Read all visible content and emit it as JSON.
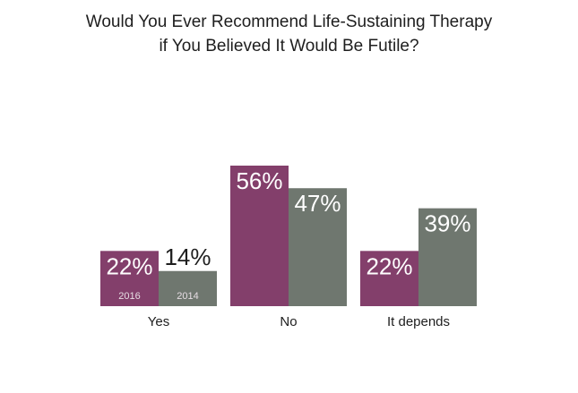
{
  "chart_data": {
    "type": "bar",
    "title_lines": [
      "Would You Ever Recommend Life-Sustaining Therapy",
      "if You Believed It Would Be Futile?"
    ],
    "categories": [
      "Yes",
      "No",
      "It depends"
    ],
    "series": [
      {
        "name": "2016",
        "values": [
          22,
          56,
          22
        ],
        "color": "#833f6b"
      },
      {
        "name": "2014",
        "values": [
          14,
          47,
          39
        ],
        "color": "#6f776f"
      }
    ],
    "value_suffix": "%",
    "ylim": [
      0,
      56
    ],
    "grid": false,
    "legend": "inside-first-group-bars"
  }
}
